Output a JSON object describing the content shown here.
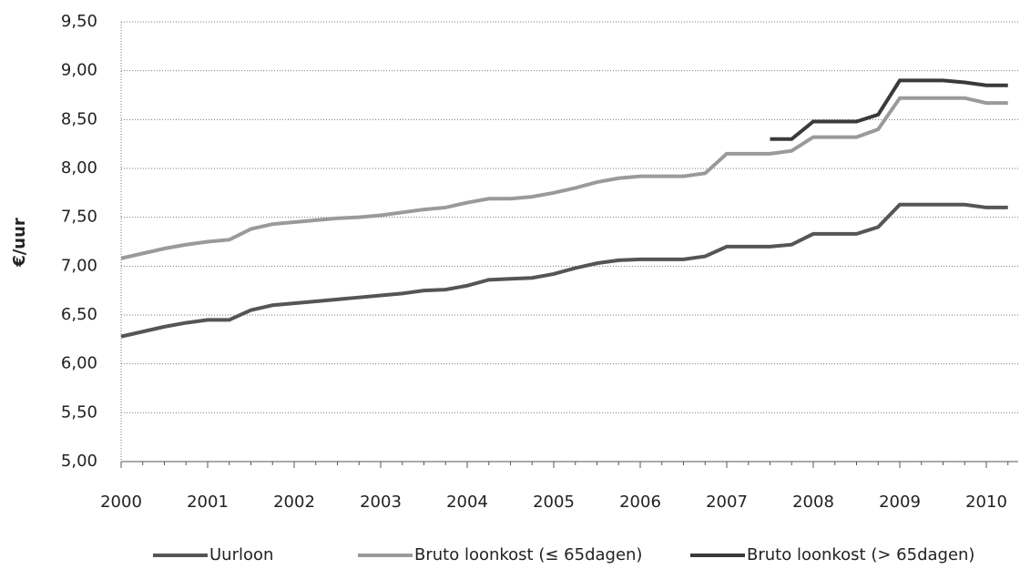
{
  "chart_data": {
    "type": "line",
    "y_label": "€/uur",
    "categories": [
      "2000",
      null,
      null,
      null,
      "2001",
      null,
      null,
      null,
      "2002",
      null,
      null,
      null,
      "2003",
      null,
      null,
      null,
      "2004",
      null,
      null,
      null,
      "2005",
      null,
      null,
      null,
      "2006",
      null,
      null,
      null,
      "2007",
      null,
      null,
      null,
      "2008",
      null,
      null,
      null,
      "2009",
      null,
      null,
      null,
      "2010",
      null
    ],
    "series": [
      {
        "name": "Uurloon",
        "color": "#555555",
        "values": [
          6.28,
          6.33,
          6.38,
          6.42,
          6.45,
          6.45,
          6.55,
          6.6,
          6.62,
          6.64,
          6.66,
          6.68,
          6.7,
          6.72,
          6.75,
          6.76,
          6.8,
          6.86,
          6.87,
          6.88,
          6.92,
          6.98,
          7.03,
          7.06,
          7.07,
          7.07,
          7.07,
          7.1,
          7.2,
          7.2,
          7.2,
          7.22,
          7.33,
          7.33,
          7.33,
          7.4,
          7.63,
          7.63,
          7.63,
          7.63,
          7.6,
          7.6
        ]
      },
      {
        "name": "Bruto loonkost (≤ 65dagen)",
        "color": "#9a9a9a",
        "values": [
          7.08,
          7.13,
          7.18,
          7.22,
          7.25,
          7.27,
          7.38,
          7.43,
          7.45,
          7.47,
          7.49,
          7.5,
          7.52,
          7.55,
          7.58,
          7.6,
          7.65,
          7.69,
          7.69,
          7.71,
          7.75,
          7.8,
          7.86,
          7.9,
          7.92,
          7.92,
          7.92,
          7.95,
          8.15,
          8.15,
          8.15,
          8.18,
          8.32,
          8.32,
          8.32,
          8.4,
          8.72,
          8.72,
          8.72,
          8.72,
          8.67,
          8.67
        ]
      },
      {
        "name": "Bruto loonkost (> 65dagen)",
        "color": "#3a3a3a",
        "values": [
          null,
          null,
          null,
          null,
          null,
          null,
          null,
          null,
          null,
          null,
          null,
          null,
          null,
          null,
          null,
          null,
          null,
          null,
          null,
          null,
          null,
          null,
          null,
          null,
          null,
          null,
          null,
          null,
          null,
          null,
          8.3,
          8.3,
          8.48,
          8.48,
          8.48,
          8.55,
          8.9,
          8.9,
          8.9,
          8.88,
          8.85,
          8.85
        ]
      }
    ],
    "ylim": [
      5.0,
      9.5
    ],
    "yticks": [
      {
        "value": 5.0,
        "label": "5,00"
      },
      {
        "value": 5.5,
        "label": "5,50"
      },
      {
        "value": 6.0,
        "label": "6,00"
      },
      {
        "value": 6.5,
        "label": "6,50"
      },
      {
        "value": 7.0,
        "label": "7,00"
      },
      {
        "value": 7.5,
        "label": "7,50"
      },
      {
        "value": 8.0,
        "label": "8,00"
      },
      {
        "value": 8.5,
        "label": "8,50"
      },
      {
        "value": 9.0,
        "label": "9,00"
      },
      {
        "value": 9.5,
        "label": "9,50"
      }
    ],
    "grid": true,
    "legend": "bottom"
  }
}
